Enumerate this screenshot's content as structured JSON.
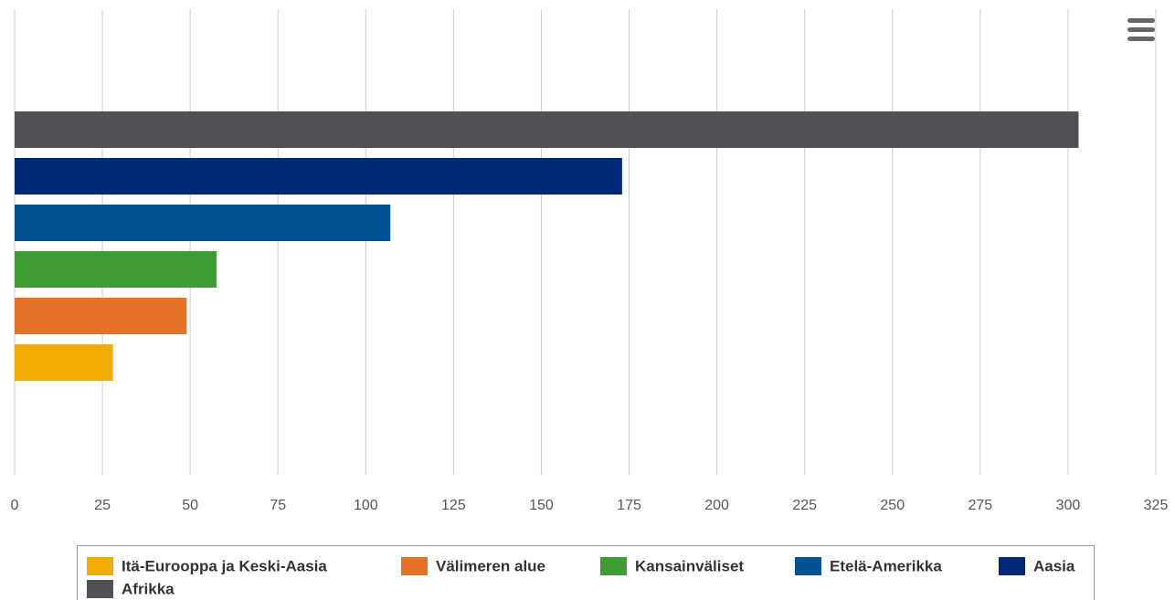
{
  "chart_data": {
    "type": "bar",
    "orientation": "horizontal",
    "series": [
      {
        "name": "Itä-Eurooppa ja Keski-Aasia",
        "color": "#f0ab00",
        "values": [
          28
        ]
      },
      {
        "name": "Välimeren alue",
        "color": "#e57226",
        "values": [
          49
        ]
      },
      {
        "name": "Kansainväliset",
        "color": "#3e9c35",
        "values": [
          57.5
        ]
      },
      {
        "name": "Etelä-Amerikka",
        "color": "#005293",
        "values": [
          107
        ]
      },
      {
        "name": "Aasia",
        "color": "#002a77",
        "values": [
          173
        ]
      },
      {
        "name": "Afrikka",
        "color": "#505155",
        "values": [
          303
        ]
      }
    ],
    "xlim": [
      0,
      325
    ],
    "xticks": [
      0,
      25,
      50,
      75,
      100,
      125,
      150,
      175,
      200,
      225,
      250,
      275,
      300,
      325
    ],
    "grid": true,
    "legend": "bottom"
  }
}
